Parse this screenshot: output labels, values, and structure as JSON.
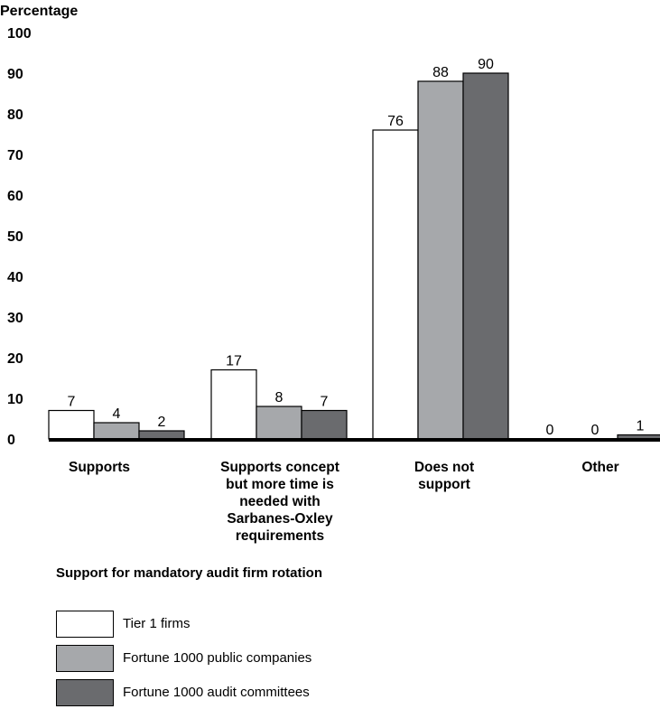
{
  "chart_data": {
    "type": "bar",
    "ylabel": "Percentage",
    "xlabel": "Support for mandatory audit firm rotation",
    "ylim": [
      0,
      100
    ],
    "yticks": [
      0,
      10,
      20,
      30,
      40,
      50,
      60,
      70,
      80,
      90,
      100
    ],
    "categories": [
      [
        "Supports"
      ],
      [
        "Supports concept",
        "but more time is",
        "needed with",
        "Sarbanes-Oxley",
        "requirements"
      ],
      [
        "Does not",
        "support"
      ],
      [
        "Other"
      ]
    ],
    "series": [
      {
        "name": "Tier 1 firms",
        "color": "#ffffff",
        "values": [
          7,
          17,
          76,
          0
        ]
      },
      {
        "name": "Fortune 1000 public companies",
        "color": "#a6a8ab",
        "values": [
          4,
          8,
          88,
          0
        ]
      },
      {
        "name": "Fortune 1000 audit committees",
        "color": "#6a6b6e",
        "values": [
          2,
          7,
          90,
          1
        ]
      }
    ],
    "grid": false,
    "legend": "bottom-left"
  }
}
